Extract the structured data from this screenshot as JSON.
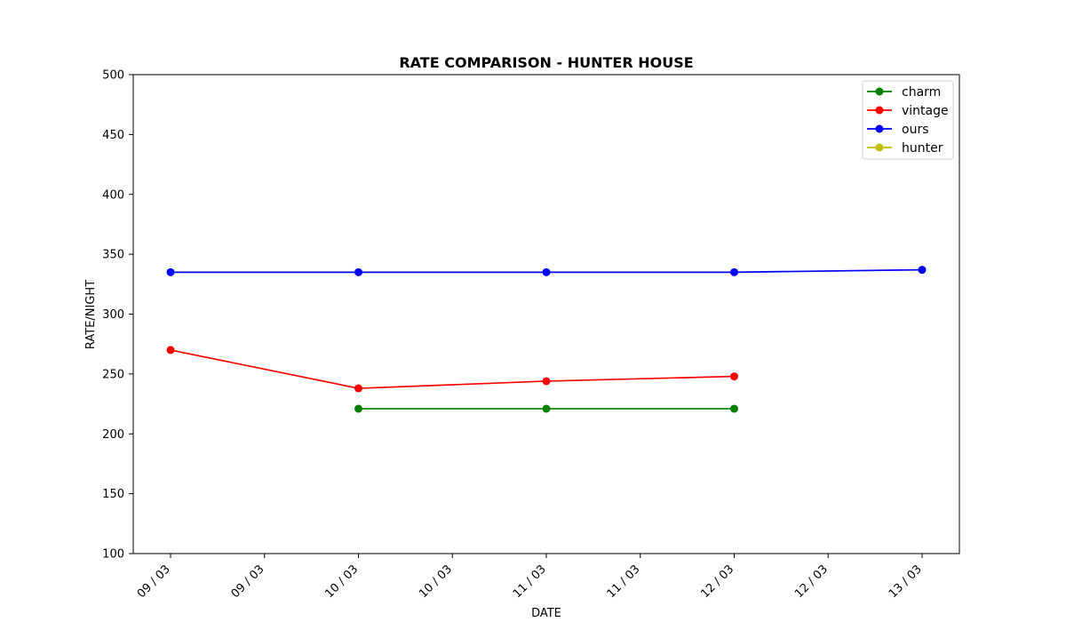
{
  "chart_data": {
    "type": "line",
    "title": "RATE COMPARISON - HUNTER HOUSE",
    "xlabel": "DATE",
    "ylabel": "RATE/NIGHT",
    "x_ticks": [
      "09 / 03",
      "09 / 03",
      "10 / 03",
      "10 / 03",
      "11 / 03",
      "11 / 03",
      "12 / 03",
      "12 / 03",
      "13 / 03"
    ],
    "x": [
      "09 / 03",
      "10 / 03",
      "11 / 03",
      "12 / 03",
      "13 / 03"
    ],
    "ylim": [
      100,
      500
    ],
    "y_ticks": [
      100,
      150,
      200,
      250,
      300,
      350,
      400,
      450,
      500
    ],
    "grid": false,
    "legend_position": "top-right",
    "series": [
      {
        "name": "charm",
        "color": "#008000",
        "values": [
          null,
          221,
          221,
          221,
          null
        ]
      },
      {
        "name": "vintage",
        "color": "#ff0000",
        "values": [
          270,
          238,
          244,
          248,
          null
        ]
      },
      {
        "name": "ours",
        "color": "#0000ff",
        "values": [
          335,
          335,
          335,
          335,
          337
        ]
      },
      {
        "name": "hunter",
        "color": "#bfbf00",
        "values": [
          null,
          null,
          null,
          null,
          null
        ]
      }
    ]
  }
}
